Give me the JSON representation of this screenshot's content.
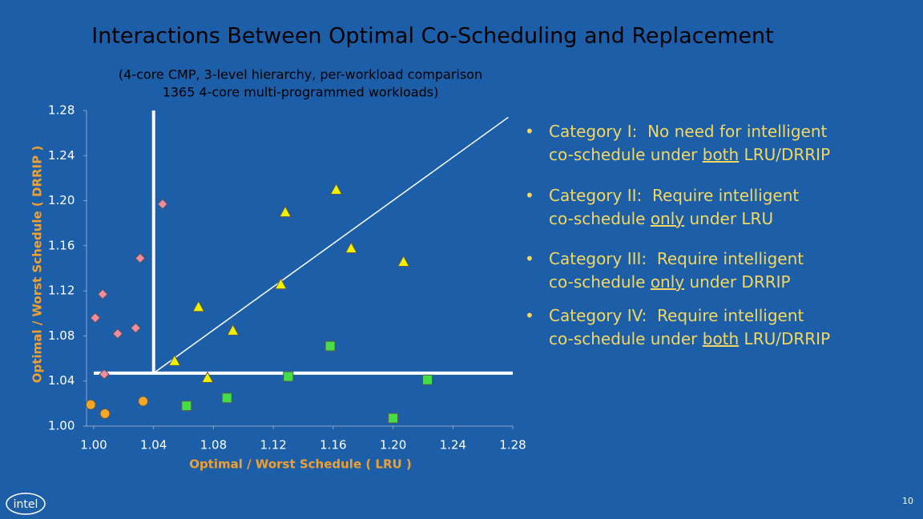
{
  "logo": "intel",
  "page_number": "10",
  "bullets": [
    [
      [
        "Category I:  No need for intelligent"
      ],
      [
        "co-schedule under ",
        "both",
        " LRU/DRRIP"
      ]
    ],
    [
      [
        "Category II:  Require intelligent"
      ],
      [
        "co-schedule ",
        "only",
        " under LRU"
      ]
    ],
    [
      [
        "Category III:  Require intelligent"
      ],
      [
        "co-schedule ",
        "only",
        " under DRRIP"
      ]
    ],
    [
      [
        "Category IV:  Require intelligent"
      ],
      [
        "co-schedule under ",
        "both",
        " LRU/DRRIP"
      ]
    ]
  ],
  "chart_data": {
    "type": "scatter",
    "title": "Interactions Between Optimal Co-Scheduling and Replacement",
    "subtitle": [
      "(4-core CMP, 3-level hierarchy, per-workload comparison",
      "1365 4-core multi-programmed workloads)"
    ],
    "xlabel": "Optimal / Worst Schedule ( LRU )",
    "ylabel": "Optimal / Worst Schedule ( DRRIP )",
    "xlim": [
      1,
      1.28
    ],
    "ylim": [
      1,
      1.28
    ],
    "xticks": [
      {
        "value": 1,
        "label": "1.00"
      },
      1.04,
      1.08,
      1.12,
      1.16,
      {
        "value": 1.2,
        "label": "1.20"
      },
      1.24,
      1.28
    ],
    "yticks": [
      {
        "value": 1,
        "label": "1.00"
      },
      1.04,
      1.08,
      1.12,
      1.16,
      {
        "value": 1.2,
        "label": "1.20"
      },
      1.24,
      1.28
    ],
    "x_threshold": 1.04,
    "y_threshold": 1.047,
    "diagonal": [
      [
        1.04,
        1.047
      ],
      [
        1.277,
        1.274
      ]
    ],
    "series": [
      {
        "marker": "circle",
        "color": "#f5a623",
        "x": [
          0.998,
          1.0075,
          1.033
        ],
        "values": [
          1.019,
          1.011,
          1.022
        ]
      },
      {
        "marker": "diamond",
        "color": "#f08ca0",
        "x": [
          1.001,
          1.006,
          1.007,
          1.016,
          1.028,
          1.031,
          1.046
        ],
        "values": [
          1.096,
          1.117,
          1.046,
          1.082,
          1.087,
          1.149,
          1.197
        ]
      },
      {
        "marker": "triangle",
        "color": "#f0f000",
        "x": [
          1.162,
          1.128,
          1.172,
          1.207,
          1.125,
          1.07,
          1.093,
          1.054,
          1.076
        ],
        "values": [
          1.21,
          1.19,
          1.158,
          1.146,
          1.126,
          1.106,
          1.085,
          1.058,
          1.043
        ]
      },
      {
        "marker": "square",
        "color": "#44dd44",
        "x": [
          1.158,
          1.13,
          1.223,
          1.089,
          1.062,
          1.2
        ],
        "values": [
          1.071,
          1.044,
          1.041,
          1.025,
          1.018,
          1.007
        ]
      }
    ]
  }
}
